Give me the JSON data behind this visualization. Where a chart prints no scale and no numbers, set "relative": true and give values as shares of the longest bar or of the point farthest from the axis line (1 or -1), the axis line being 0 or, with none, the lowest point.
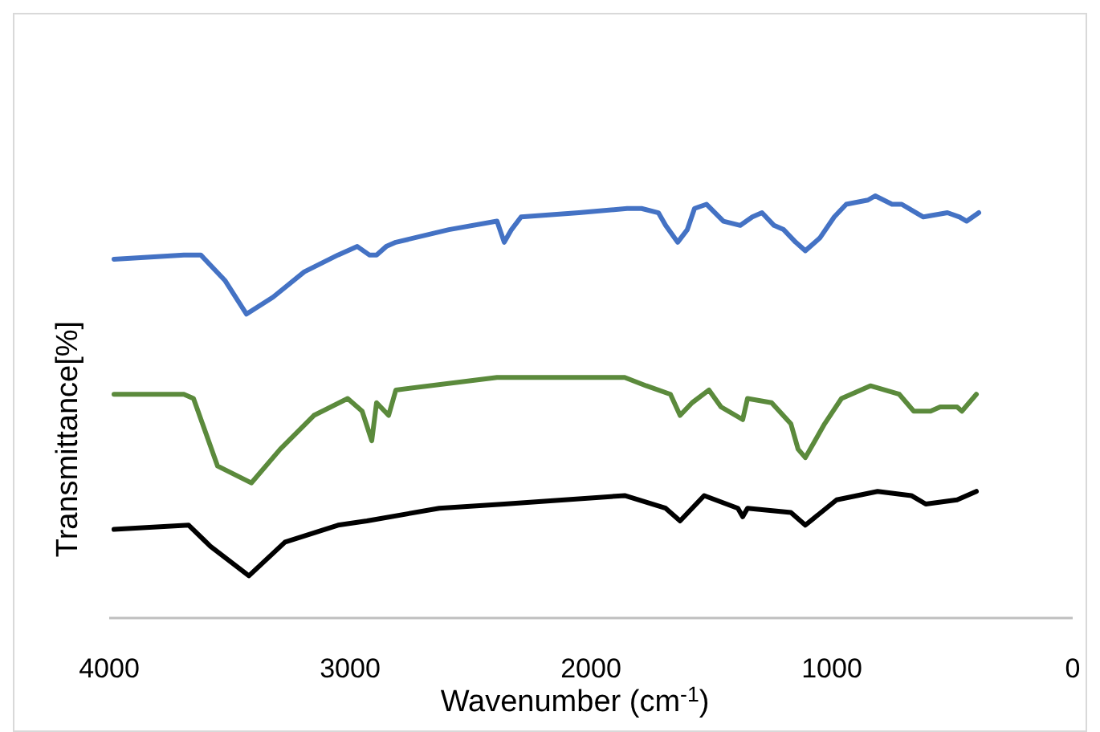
{
  "chart_data": {
    "type": "line",
    "relative": true,
    "xlabel": "Wavenumber (cm$^{-1}$)",
    "ylabel": "Transmittance[%]",
    "xlim": [
      4000,
      0
    ],
    "xticks": [
      4000,
      3000,
      2000,
      1000,
      0
    ],
    "marker": "none",
    "line_style": "solid",
    "tick_labels": "x",
    "series": [
      {
        "color": "#4472c4",
        "x": [
          3980,
          3690,
          3620,
          3520,
          3430,
          3320,
          3190,
          3050,
          2970,
          2920,
          2890,
          2850,
          2810,
          2590,
          2390,
          2360,
          2330,
          2290,
          2050,
          1850,
          1790,
          1720,
          1690,
          1640,
          1600,
          1570,
          1520,
          1450,
          1380,
          1330,
          1290,
          1240,
          1200,
          1150,
          1110,
          1050,
          990,
          940,
          850,
          820,
          750,
          710,
          650,
          620,
          520,
          470,
          440,
          390
        ],
        "values": [
          0.85,
          0.86,
          0.86,
          0.8,
          0.72,
          0.76,
          0.82,
          0.86,
          0.88,
          0.86,
          0.86,
          0.88,
          0.89,
          0.92,
          0.94,
          0.89,
          0.92,
          0.95,
          0.96,
          0.97,
          0.97,
          0.96,
          0.93,
          0.89,
          0.92,
          0.97,
          0.98,
          0.94,
          0.93,
          0.95,
          0.96,
          0.93,
          0.92,
          0.89,
          0.87,
          0.9,
          0.95,
          0.98,
          0.99,
          1,
          0.98,
          0.98,
          0.96,
          0.95,
          0.96,
          0.95,
          0.94,
          0.96
        ]
      },
      {
        "color": "#5b8a3c",
        "x": [
          3980,
          3690,
          3650,
          3550,
          3410,
          3290,
          3150,
          3010,
          2950,
          2910,
          2890,
          2840,
          2810,
          2390,
          1860,
          1770,
          1670,
          1630,
          1580,
          1510,
          1460,
          1370,
          1350,
          1250,
          1170,
          1140,
          1110,
          1030,
          960,
          840,
          720,
          660,
          590,
          550,
          480,
          460,
          400
        ],
        "values": [
          0.53,
          0.53,
          0.52,
          0.36,
          0.32,
          0.4,
          0.48,
          0.52,
          0.49,
          0.42,
          0.51,
          0.48,
          0.54,
          0.57,
          0.57,
          0.55,
          0.53,
          0.48,
          0.51,
          0.54,
          0.5,
          0.47,
          0.52,
          0.51,
          0.46,
          0.4,
          0.38,
          0.46,
          0.52,
          0.55,
          0.53,
          0.49,
          0.49,
          0.5,
          0.5,
          0.49,
          0.53
        ]
      },
      {
        "color": "#000000",
        "x": [
          3980,
          3670,
          3580,
          3420,
          3270,
          3050,
          2930,
          2630,
          2360,
          1860,
          1690,
          1630,
          1530,
          1390,
          1370,
          1350,
          1170,
          1110,
          980,
          810,
          670,
          610,
          480,
          400
        ],
        "values": [
          0.21,
          0.22,
          0.17,
          0.1,
          0.18,
          0.22,
          0.23,
          0.26,
          0.27,
          0.29,
          0.26,
          0.23,
          0.29,
          0.26,
          0.24,
          0.26,
          0.25,
          0.22,
          0.28,
          0.3,
          0.29,
          0.27,
          0.28,
          0.3
        ]
      }
    ]
  }
}
